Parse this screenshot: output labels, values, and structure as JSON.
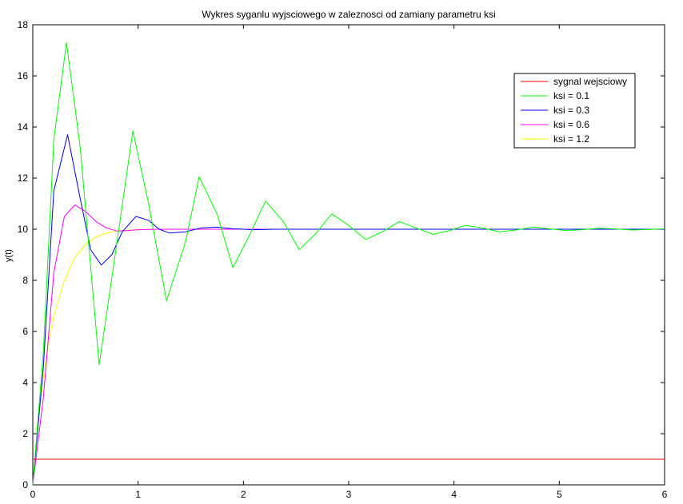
{
  "chart_data": {
    "type": "line",
    "title": "Wykres syganlu wyjsciowego w zaleznosci od zamiany parametru ksi",
    "xlabel": "",
    "ylabel": "y(t)",
    "xlim": [
      0,
      6
    ],
    "ylim": [
      0,
      18
    ],
    "xticks": [
      0,
      1,
      2,
      3,
      4,
      5,
      6
    ],
    "yticks": [
      0,
      2,
      4,
      6,
      8,
      10,
      12,
      14,
      16,
      18
    ],
    "grid": false,
    "legend_position": "top-right",
    "series": [
      {
        "name": "sygnal wejsciowy",
        "color": "#ff0000",
        "x": [
          0,
          6
        ],
        "y": [
          1,
          1
        ]
      },
      {
        "name": "ksi = 0.1",
        "color": "#00ff00",
        "x": [
          0,
          0.1,
          0.2,
          0.32,
          0.45,
          0.63,
          0.8,
          0.95,
          1.1,
          1.27,
          1.45,
          1.58,
          1.75,
          1.9,
          2.05,
          2.21,
          2.38,
          2.53,
          2.68,
          2.84,
          3.0,
          3.16,
          3.32,
          3.48,
          3.64,
          3.8,
          3.96,
          4.11,
          4.27,
          4.43,
          4.59,
          4.75,
          4.9,
          5.06,
          5.22,
          5.38,
          5.54,
          5.7,
          5.86,
          6.0
        ],
        "y": [
          0,
          5.2,
          13.5,
          17.3,
          13.2,
          4.7,
          9.5,
          13.85,
          11.0,
          7.2,
          9.5,
          12.05,
          10.6,
          8.5,
          9.7,
          11.1,
          10.3,
          9.2,
          9.8,
          10.6,
          10.15,
          9.6,
          9.9,
          10.3,
          10.05,
          9.8,
          9.95,
          10.15,
          10.05,
          9.9,
          9.97,
          10.08,
          10.02,
          9.95,
          9.98,
          10.04,
          10.01,
          9.97,
          9.99,
          10.02
        ]
      },
      {
        "name": "ksi = 0.3",
        "color": "#0000ff",
        "x": [
          0,
          0.1,
          0.2,
          0.33,
          0.45,
          0.55,
          0.65,
          0.75,
          0.85,
          0.98,
          1.1,
          1.2,
          1.3,
          1.45,
          1.6,
          1.75,
          1.9,
          2.1,
          2.3,
          2.6,
          3.0,
          6.0
        ],
        "y": [
          0,
          4.6,
          11.5,
          13.7,
          11.2,
          9.2,
          8.6,
          9.0,
          9.9,
          10.5,
          10.35,
          10.0,
          9.85,
          9.9,
          10.05,
          10.08,
          10.02,
          9.98,
          10.0,
          10.0,
          10.0,
          10.0
        ]
      },
      {
        "name": "ksi = 0.6",
        "color": "#ff00ff",
        "x": [
          0,
          0.1,
          0.2,
          0.3,
          0.4,
          0.5,
          0.6,
          0.7,
          0.8,
          0.9,
          1.0,
          1.2,
          1.5,
          2.0,
          6.0
        ],
        "y": [
          0,
          3.4,
          8.3,
          10.5,
          10.95,
          10.7,
          10.3,
          10.05,
          9.93,
          9.95,
          9.98,
          10.0,
          10.0,
          10.0,
          10.0
        ]
      },
      {
        "name": "ksi = 1.2",
        "color": "#ffff00",
        "x": [
          0,
          0.05,
          0.1,
          0.15,
          0.2,
          0.3,
          0.4,
          0.5,
          0.6,
          0.7,
          0.8,
          0.9,
          1.0,
          1.2,
          1.5,
          2.0,
          6.0
        ],
        "y": [
          0,
          2.5,
          4.2,
          5.6,
          6.6,
          8.0,
          8.9,
          9.4,
          9.7,
          9.85,
          9.93,
          9.96,
          9.98,
          10.0,
          10.0,
          10.0,
          10.0
        ]
      }
    ]
  }
}
